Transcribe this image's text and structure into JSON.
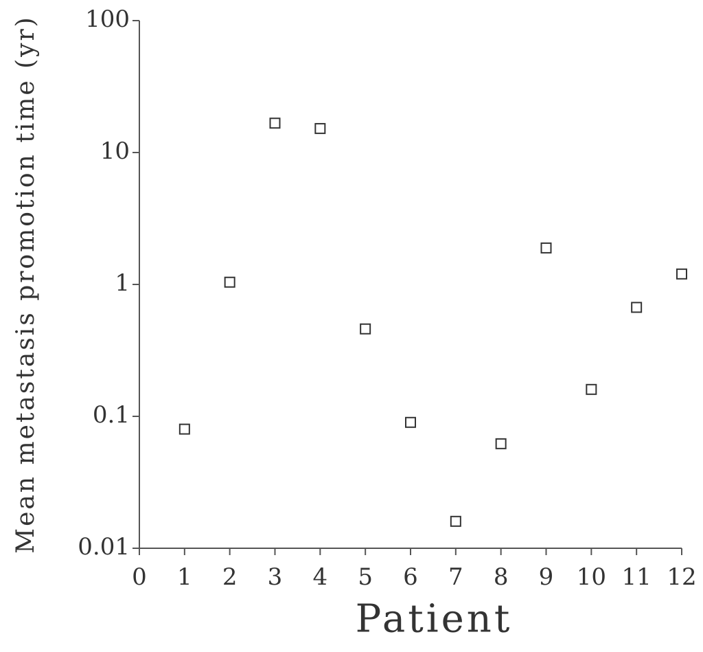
{
  "chart_data": {
    "type": "scatter",
    "x_label": "Patient",
    "y_label": "Mean metastasis promotion time (yr)",
    "x": [
      1,
      2,
      3,
      4,
      5,
      6,
      7,
      8,
      9,
      10,
      11,
      12
    ],
    "values": [
      0.08,
      1.04,
      16.7,
      15.2,
      0.46,
      0.09,
      0.016,
      0.062,
      1.89,
      0.16,
      0.67,
      1.2
    ],
    "color": "#333333",
    "marker": "square",
    "xlim": [
      0,
      12
    ],
    "xticks": [
      0,
      1,
      2,
      3,
      4,
      5,
      6,
      7,
      8,
      9,
      10,
      11,
      12
    ],
    "ylim": [
      0.01,
      100
    ],
    "yticks": [
      0.01,
      0.1,
      1,
      10,
      100
    ],
    "y_scale": "log",
    "grid": false
  }
}
